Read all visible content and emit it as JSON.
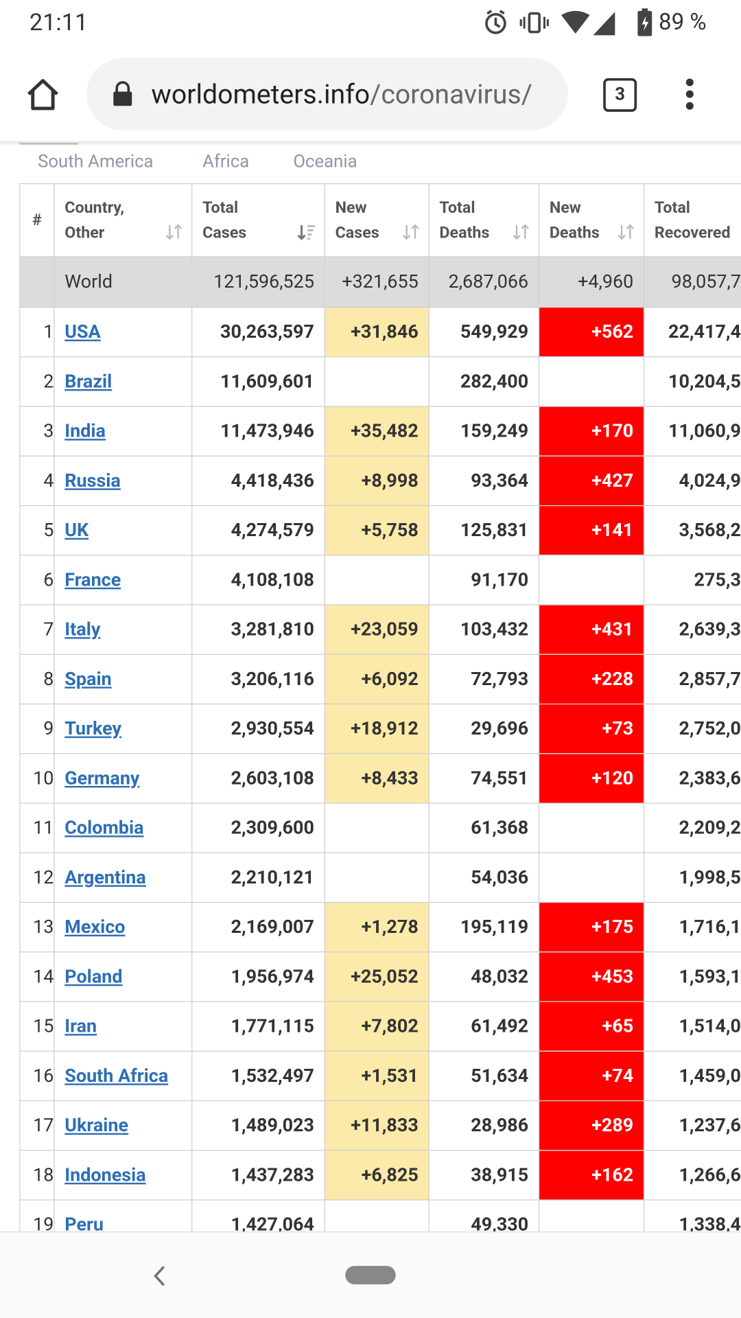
{
  "status_bar": {
    "time": "21:11",
    "battery": "89 %"
  },
  "browser": {
    "url_domain": "worldometers.info",
    "url_path": "/coronavirus/",
    "tab_count": "3"
  },
  "region_tabs": [
    "South America",
    "Africa",
    "Oceania"
  ],
  "table": {
    "headers": [
      [
        "#"
      ],
      [
        "Country,",
        "Other"
      ],
      [
        "Total",
        "Cases"
      ],
      [
        "New",
        "Cases"
      ],
      [
        "Total",
        "Deaths"
      ],
      [
        "New",
        "Deaths"
      ],
      [
        "Total",
        "Recovered"
      ]
    ],
    "world": [
      "World",
      "121,596,525",
      "+321,655",
      "2,687,066",
      "+4,960",
      "98,057,7"
    ],
    "rows": [
      [
        1,
        "USA",
        "30,263,597",
        "+31,846",
        "549,929",
        "+562",
        "22,417,4"
      ],
      [
        2,
        "Brazil",
        "11,609,601",
        null,
        "282,400",
        null,
        "10,204,5"
      ],
      [
        3,
        "India",
        "11,473,946",
        "+35,482",
        "159,249",
        "+170",
        "11,060,9"
      ],
      [
        4,
        "Russia",
        "4,418,436",
        "+8,998",
        "93,364",
        "+427",
        "4,024,9"
      ],
      [
        5,
        "UK",
        "4,274,579",
        "+5,758",
        "125,831",
        "+141",
        "3,568,2"
      ],
      [
        6,
        "France",
        "4,108,108",
        null,
        "91,170",
        null,
        "275,3"
      ],
      [
        7,
        "Italy",
        "3,281,810",
        "+23,059",
        "103,432",
        "+431",
        "2,639,3"
      ],
      [
        8,
        "Spain",
        "3,206,116",
        "+6,092",
        "72,793",
        "+228",
        "2,857,7"
      ],
      [
        9,
        "Turkey",
        "2,930,554",
        "+18,912",
        "29,696",
        "+73",
        "2,752,0"
      ],
      [
        10,
        "Germany",
        "2,603,108",
        "+8,433",
        "74,551",
        "+120",
        "2,383,6"
      ],
      [
        11,
        "Colombia",
        "2,309,600",
        null,
        "61,368",
        null,
        "2,209,2"
      ],
      [
        12,
        "Argentina",
        "2,210,121",
        null,
        "54,036",
        null,
        "1,998,5"
      ],
      [
        13,
        "Mexico",
        "2,169,007",
        "+1,278",
        "195,119",
        "+175",
        "1,716,1"
      ],
      [
        14,
        "Poland",
        "1,956,974",
        "+25,052",
        "48,032",
        "+453",
        "1,593,1"
      ],
      [
        15,
        "Iran",
        "1,771,115",
        "+7,802",
        "61,492",
        "+65",
        "1,514,0"
      ],
      [
        16,
        "South Africa",
        "1,532,497",
        "+1,531",
        "51,634",
        "+74",
        "1,459,0"
      ],
      [
        17,
        "Ukraine",
        "1,489,023",
        "+11,833",
        "28,986",
        "+289",
        "1,237,6"
      ],
      [
        18,
        "Indonesia",
        "1,437,283",
        "+6,825",
        "38,915",
        "+162",
        "1,266,6"
      ],
      [
        19,
        "Peru",
        "1,427,064",
        null,
        "49,330",
        null,
        "1,338,4"
      ]
    ]
  }
}
